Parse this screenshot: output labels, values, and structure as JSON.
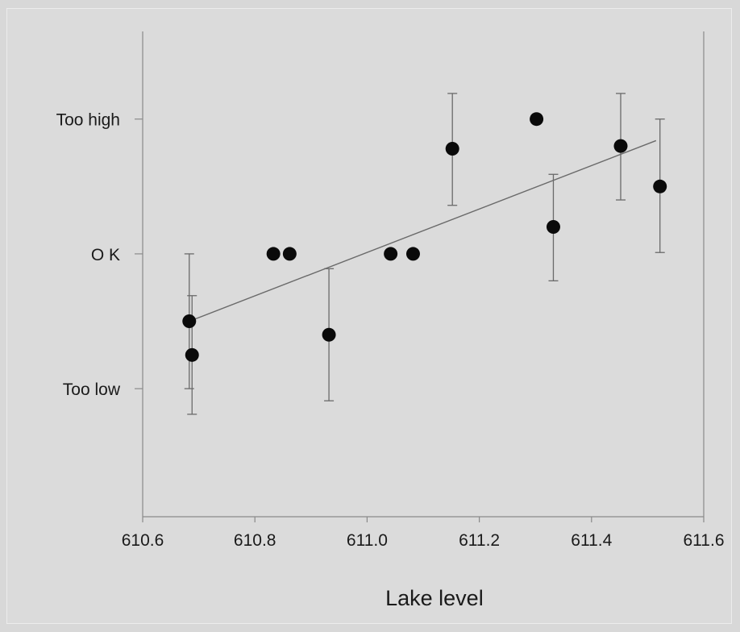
{
  "chart_data": {
    "type": "scatter",
    "title": "",
    "xlabel": "Lake level",
    "ylabel": "",
    "xlim": [
      610.6,
      611.6
    ],
    "ylim": [
      -1.95,
      1.65
    ],
    "x_ticks": [
      610.6,
      610.8,
      611.0,
      611.2,
      611.4,
      611.6
    ],
    "x_tick_labels": [
      "610.6",
      "610.8",
      "611.0",
      "611.2",
      "611.4",
      "611.6"
    ],
    "y_ticks": [
      1,
      0,
      -1
    ],
    "y_tick_labels": [
      "Too high",
      "O K",
      "Too low"
    ],
    "grid": false,
    "legend": "none",
    "points": [
      {
        "x": 610.683,
        "y": -0.5,
        "err_low": -1.0,
        "err_high": 0.0
      },
      {
        "x": 610.688,
        "y": -0.75,
        "err_low": -1.19,
        "err_high": -0.31
      },
      {
        "x": 610.833,
        "y": 0.0
      },
      {
        "x": 610.862,
        "y": 0.0
      },
      {
        "x": 610.932,
        "y": -0.6,
        "err_low": -1.09,
        "err_high": -0.11
      },
      {
        "x": 611.042,
        "y": 0.0
      },
      {
        "x": 611.082,
        "y": 0.0
      },
      {
        "x": 611.152,
        "y": 0.78,
        "err_low": 0.36,
        "err_high": 1.19
      },
      {
        "x": 611.302,
        "y": 1.0
      },
      {
        "x": 611.332,
        "y": 0.2,
        "err_low": -0.2,
        "err_high": 0.59
      },
      {
        "x": 611.452,
        "y": 0.8,
        "err_low": 0.4,
        "err_high": 1.19
      },
      {
        "x": 611.522,
        "y": 0.5,
        "err_low": 0.01,
        "err_high": 1.0
      }
    ],
    "trendline": {
      "type": "linear",
      "x": [
        610.683,
        611.515
      ],
      "y": [
        -0.5,
        0.84
      ]
    },
    "colors": {
      "points": "#0a0a0a",
      "lines": "#6a6a6a",
      "background": "#dbdbdb"
    }
  }
}
